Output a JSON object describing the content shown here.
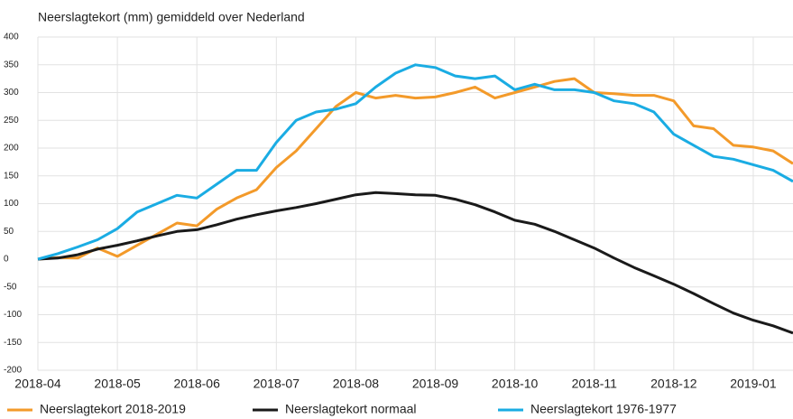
{
  "chart_data": {
    "type": "line",
    "title": "Neerslagtekort (mm) gemiddeld over Nederland",
    "categories": [
      "2018-04",
      null,
      null,
      null,
      "2018-05",
      null,
      null,
      null,
      "2018-06",
      null,
      null,
      null,
      "2018-07",
      null,
      null,
      null,
      "2018-08",
      null,
      null,
      null,
      "2018-09",
      null,
      null,
      null,
      "2018-10",
      null,
      null,
      null,
      "2018-11",
      null,
      null,
      null,
      "2018-12",
      null,
      null,
      null,
      "2019-01",
      null,
      null
    ],
    "series": [
      {
        "name": "Neerslagtekort 2018-2019",
        "color": "#f39a2a",
        "values": [
          0,
          3,
          2,
          20,
          5,
          25,
          45,
          65,
          60,
          90,
          110,
          125,
          165,
          195,
          235,
          275,
          300,
          290,
          295,
          290,
          292,
          300,
          310,
          290,
          300,
          310,
          320,
          325,
          300,
          298,
          295,
          295,
          285,
          240,
          235,
          205,
          202,
          195,
          172
        ]
      },
      {
        "name": "Neerslagtekort normaal",
        "color": "#1a1a1a",
        "values": [
          0,
          2,
          8,
          18,
          25,
          33,
          42,
          50,
          53,
          62,
          72,
          80,
          87,
          93,
          100,
          108,
          116,
          120,
          118,
          116,
          115,
          108,
          98,
          85,
          70,
          63,
          50,
          35,
          20,
          2,
          -15,
          -30,
          -45,
          -62,
          -80,
          -97,
          -110,
          -120,
          -133
        ]
      },
      {
        "name": "Neerslagtekort 1976-1977",
        "color": "#1aace3",
        "values": [
          0,
          10,
          22,
          35,
          55,
          85,
          100,
          115,
          110,
          135,
          160,
          160,
          210,
          250,
          265,
          270,
          280,
          310,
          335,
          350,
          345,
          330,
          325,
          330,
          305,
          315,
          305,
          305,
          300,
          285,
          280,
          265,
          225,
          205,
          185,
          180,
          170,
          160,
          140
        ]
      }
    ],
    "ylim": [
      -200,
      400
    ],
    "yticks": [
      -200,
      -150,
      -100,
      -50,
      0,
      50,
      100,
      150,
      200,
      250,
      300,
      350,
      400
    ],
    "grid": true
  }
}
